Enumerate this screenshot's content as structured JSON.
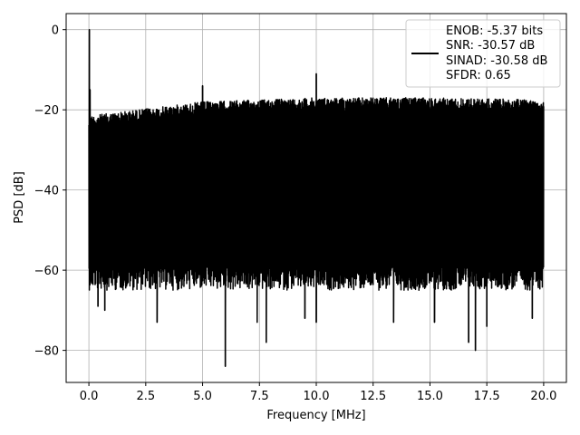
{
  "chart_data": {
    "type": "line",
    "title": "",
    "xlabel": "Frequency [MHz]",
    "ylabel": "PSD [dB]",
    "xlim": [
      -1.0,
      21.0
    ],
    "ylim": [
      -88.0,
      4.0
    ],
    "xticks": [
      0.0,
      2.5,
      5.0,
      7.5,
      10.0,
      12.5,
      15.0,
      17.5,
      20.0
    ],
    "xtick_labels": [
      "0.0",
      "2.5",
      "5.0",
      "7.5",
      "10.0",
      "12.5",
      "15.0",
      "17.5",
      "20.0"
    ],
    "yticks": [
      0,
      -20,
      -40,
      -60,
      -80
    ],
    "ytick_labels": [
      "0",
      "−20",
      "−40",
      "−60",
      "−80"
    ],
    "grid": true,
    "legend_position": "top-right",
    "line_color": "#000000",
    "series": [
      {
        "name": "ENOB: -5.37 bits\nSNR: -30.57 dB\nSINAD: -30.58 dB\nSFDR: 0.65",
        "legend_lines": [
          "ENOB: -5.37 bits",
          "SNR: -30.57 dB",
          "SINAD: -30.58 dB",
          "SFDR: 0.65"
        ],
        "x_range": [
          0.0,
          20.0
        ],
        "peak": {
          "x": 0.02,
          "y": 0.0
        },
        "noise_ceiling": [
          {
            "x": 0.0,
            "y": -21.0
          },
          {
            "x": 5.0,
            "y": -17.5
          },
          {
            "x": 10.0,
            "y": -16.5
          },
          {
            "x": 15.0,
            "y": -16.5
          },
          {
            "x": 20.0,
            "y": -17.0
          }
        ],
        "noise_floor_typical": -60.0,
        "spurs": [
          {
            "x": 0.05,
            "y": -15.0
          },
          {
            "x": 5.0,
            "y": -14.0
          },
          {
            "x": 10.0,
            "y": -11.0
          }
        ],
        "dips": [
          {
            "x": 0.4,
            "y": -69.0
          },
          {
            "x": 0.7,
            "y": -70.0
          },
          {
            "x": 3.0,
            "y": -73.0
          },
          {
            "x": 6.0,
            "y": -84.0
          },
          {
            "x": 7.4,
            "y": -73.0
          },
          {
            "x": 7.8,
            "y": -78.0
          },
          {
            "x": 9.5,
            "y": -72.0
          },
          {
            "x": 10.0,
            "y": -73.0
          },
          {
            "x": 13.4,
            "y": -73.0
          },
          {
            "x": 15.2,
            "y": -73.0
          },
          {
            "x": 16.7,
            "y": -78.0
          },
          {
            "x": 17.0,
            "y": -80.0
          },
          {
            "x": 17.5,
            "y": -74.0
          },
          {
            "x": 19.5,
            "y": -72.0
          }
        ]
      }
    ]
  }
}
